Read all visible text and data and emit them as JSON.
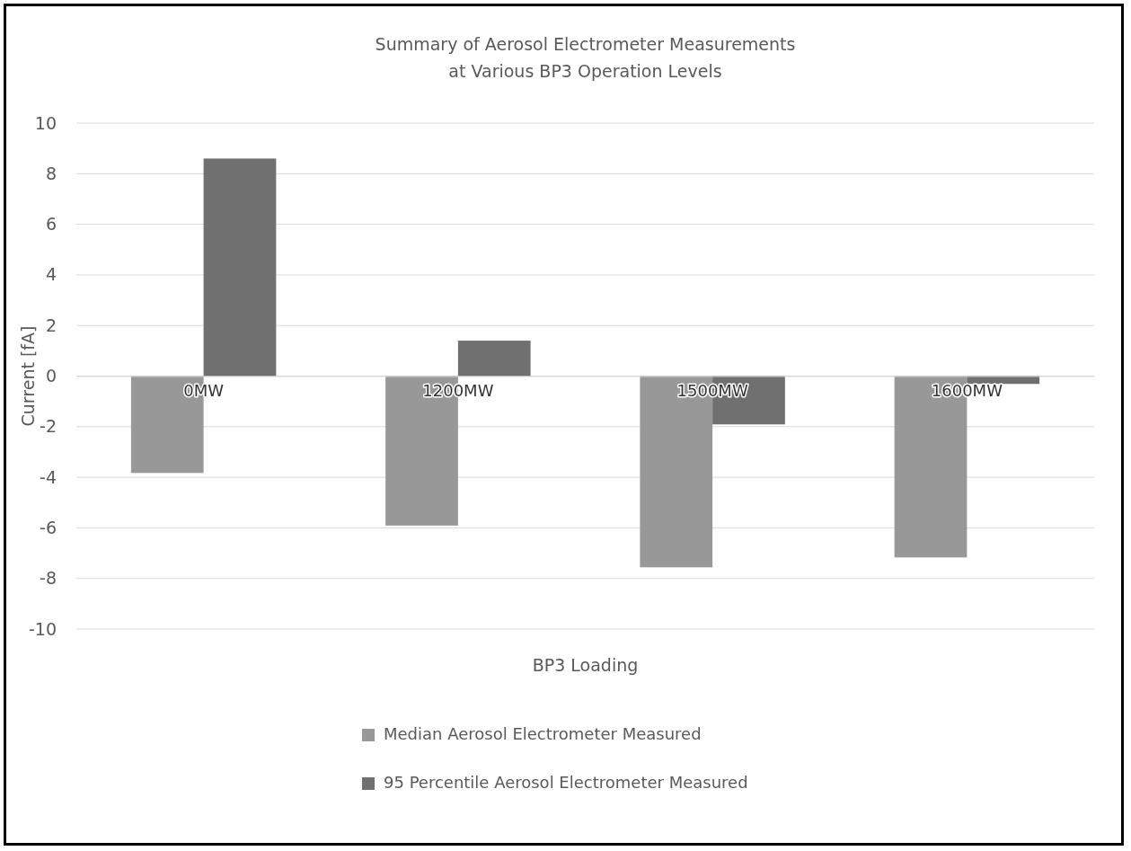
{
  "chart_data": {
    "type": "bar",
    "title": "Summary of Aerosol Electrometer Measurements\nat Various BP3 Operation Levels",
    "xlabel": "BP3 Loading",
    "ylabel": "Current [fA]",
    "categories": [
      "0MW",
      "1200MW",
      "1500MW",
      "1600MW"
    ],
    "series": [
      {
        "name": "Median Aerosol Electrometer Measured",
        "color": "#989898",
        "values": [
          -3.83,
          -5.91,
          -7.56,
          -7.17
        ]
      },
      {
        "name": "95 Percentile Aerosol Electrometer Measured",
        "color": "#707070",
        "values": [
          8.6,
          1.4,
          -1.91,
          -0.31
        ]
      }
    ],
    "ylim": [
      -10,
      10
    ],
    "yticks": [
      -10,
      -8,
      -6,
      -4,
      -2,
      0,
      2,
      4,
      6,
      8,
      10
    ],
    "grid": "y",
    "legend": "bottom"
  }
}
